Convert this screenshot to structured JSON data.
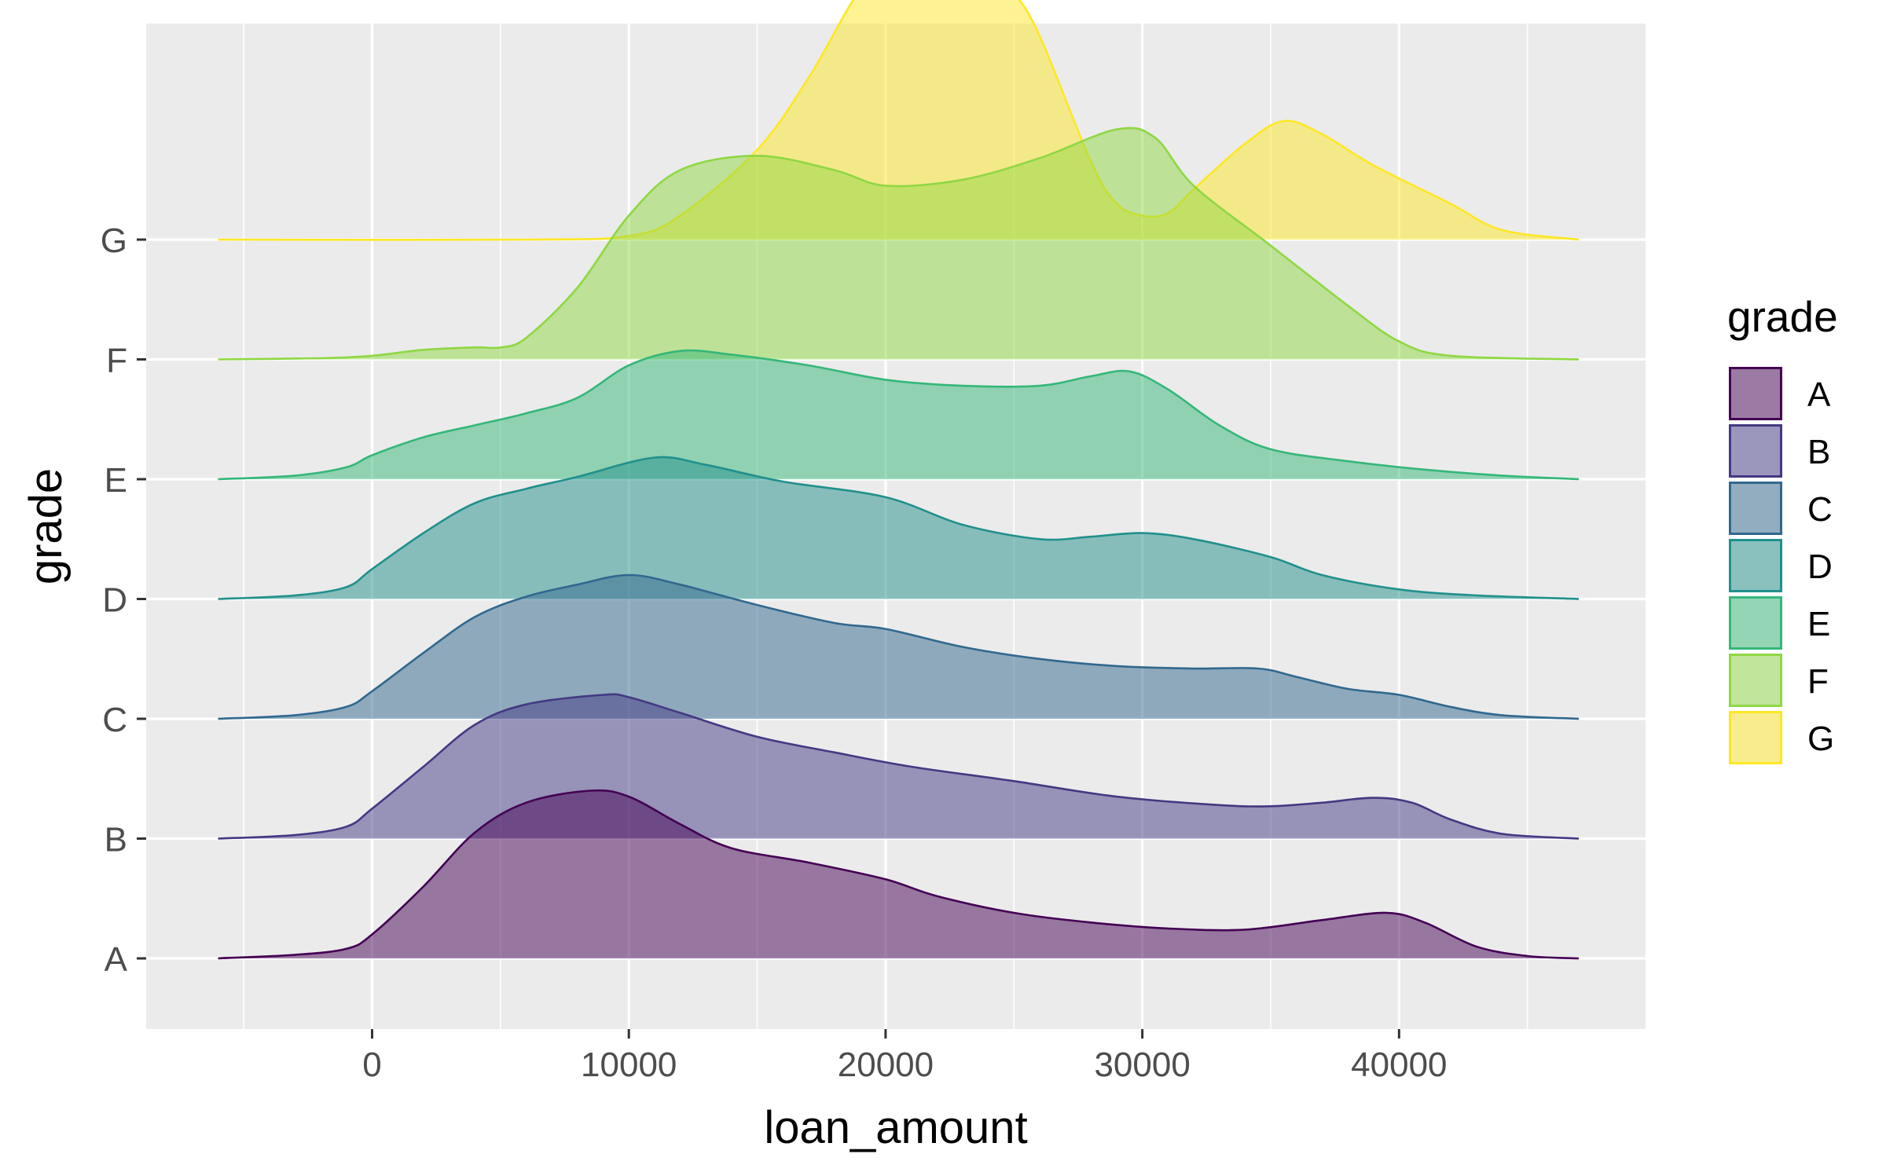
{
  "chart_data": {
    "type": "area",
    "subtype": "ridgeline-density",
    "xlabel": "loan_amount",
    "ylabel": "grade",
    "xlim": [
      -8800,
      49600
    ],
    "x_ticks": [
      0,
      10000,
      20000,
      30000,
      40000
    ],
    "x_tick_labels": [
      "0",
      "10000",
      "20000",
      "30000",
      "40000"
    ],
    "x_minor_ticks": [
      -5000,
      5000,
      15000,
      25000,
      35000,
      45000
    ],
    "y_categories": [
      "A",
      "B",
      "C",
      "D",
      "E",
      "F",
      "G"
    ],
    "density_scale_note": "heights in units of grade-row spacing",
    "legend": {
      "title": "grade",
      "position": "right",
      "entries": [
        "A",
        "B",
        "C",
        "D",
        "E",
        "F",
        "G"
      ]
    },
    "colors": {
      "A": "#440154",
      "B": "#443983",
      "C": "#31688E",
      "D": "#21908C",
      "E": "#35B779",
      "F": "#8FD744",
      "G": "#FDE725"
    },
    "fill_alpha": 0.5,
    "panel_background": "#EBEBEB",
    "grid_color": "#FFFFFF",
    "series": [
      {
        "name": "A",
        "x": [
          -6000,
          -3000,
          -1000,
          0,
          2000,
          4000,
          6000,
          8500,
          10000,
          12000,
          14000,
          17000,
          20000,
          22000,
          25000,
          28000,
          31000,
          34000,
          37000,
          39500,
          41000,
          43000,
          45000,
          47000
        ],
        "density": [
          0,
          0.03,
          0.08,
          0.2,
          0.6,
          1.05,
          1.3,
          1.4,
          1.35,
          1.12,
          0.92,
          0.8,
          0.66,
          0.52,
          0.38,
          0.3,
          0.25,
          0.24,
          0.32,
          0.38,
          0.3,
          0.1,
          0.02,
          0
        ]
      },
      {
        "name": "B",
        "x": [
          -6000,
          -3000,
          -1000,
          0,
          2000,
          4000,
          6000,
          9000,
          10000,
          12000,
          15000,
          18000,
          21000,
          25000,
          29000,
          33000,
          35000,
          37000,
          39000,
          40500,
          42000,
          44000,
          47000
        ],
        "density": [
          0,
          0.03,
          0.1,
          0.25,
          0.6,
          0.95,
          1.12,
          1.2,
          1.18,
          1.05,
          0.85,
          0.72,
          0.6,
          0.48,
          0.35,
          0.28,
          0.27,
          0.3,
          0.34,
          0.3,
          0.16,
          0.04,
          0
        ]
      },
      {
        "name": "C",
        "x": [
          -6000,
          -3000,
          -1000,
          0,
          2000,
          4000,
          6000,
          8000,
          10000,
          12000,
          15000,
          18000,
          20000,
          23000,
          26000,
          29000,
          32000,
          34500,
          36000,
          38000,
          40000,
          42000,
          44000,
          47000
        ],
        "density": [
          0,
          0.03,
          0.1,
          0.23,
          0.55,
          0.85,
          1.02,
          1.12,
          1.2,
          1.12,
          0.95,
          0.8,
          0.75,
          0.6,
          0.5,
          0.44,
          0.42,
          0.42,
          0.35,
          0.25,
          0.2,
          0.1,
          0.03,
          0
        ]
      },
      {
        "name": "D",
        "x": [
          -6000,
          -3000,
          -1000,
          0,
          2000,
          4000,
          6000,
          8000,
          11000,
          13000,
          16000,
          20000,
          23000,
          26000,
          28000,
          30000,
          32000,
          35000,
          37000,
          40000,
          43000,
          47000
        ],
        "density": [
          0,
          0.03,
          0.1,
          0.25,
          0.55,
          0.8,
          0.92,
          1.02,
          1.18,
          1.12,
          0.98,
          0.85,
          0.62,
          0.5,
          0.52,
          0.55,
          0.5,
          0.35,
          0.2,
          0.08,
          0.03,
          0
        ]
      },
      {
        "name": "E",
        "x": [
          -6000,
          -3000,
          -1000,
          0,
          2000,
          4000,
          6000,
          8000,
          10000,
          12000,
          14000,
          17000,
          20000,
          23000,
          26000,
          28000,
          29500,
          31000,
          33000,
          35000,
          38000,
          41000,
          44000,
          47000
        ],
        "density": [
          0,
          0.03,
          0.1,
          0.2,
          0.35,
          0.45,
          0.55,
          0.68,
          0.95,
          1.07,
          1.04,
          0.95,
          0.83,
          0.78,
          0.78,
          0.86,
          0.9,
          0.75,
          0.45,
          0.25,
          0.15,
          0.08,
          0.03,
          0
        ]
      },
      {
        "name": "F",
        "x": [
          -6000,
          -2000,
          0,
          2000,
          4000,
          5000,
          6000,
          8000,
          10000,
          12000,
          15000,
          18000,
          20000,
          23000,
          26000,
          29000,
          30500,
          32000,
          35000,
          38000,
          40000,
          42000,
          47000
        ],
        "density": [
          0,
          0.01,
          0.03,
          0.08,
          0.1,
          0.1,
          0.18,
          0.6,
          1.2,
          1.58,
          1.7,
          1.58,
          1.45,
          1.5,
          1.68,
          1.92,
          1.85,
          1.45,
          0.95,
          0.45,
          0.15,
          0.03,
          0
        ]
      },
      {
        "name": "G",
        "x": [
          -6000,
          6000,
          10000,
          12000,
          15000,
          17000,
          19000,
          20000,
          22000,
          24000,
          25000,
          26000,
          28000,
          29000,
          30000,
          31000,
          32000,
          34000,
          35500,
          37000,
          39000,
          42000,
          44000,
          47000
        ],
        "density": [
          0,
          0,
          0.03,
          0.2,
          0.75,
          1.35,
          2.08,
          2.15,
          2.14,
          2.16,
          2.05,
          1.7,
          0.65,
          0.3,
          0.2,
          0.22,
          0.42,
          0.8,
          0.99,
          0.88,
          0.62,
          0.3,
          0.08,
          0
        ]
      }
    ]
  }
}
